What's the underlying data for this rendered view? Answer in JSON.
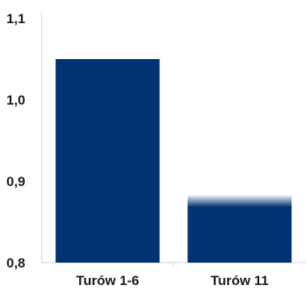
{
  "chart_data": {
    "type": "bar",
    "title": "",
    "xlabel": "",
    "ylabel": "",
    "categories": [
      "Turów 1-6",
      "Turów 11"
    ],
    "values": [
      1.05,
      0.895
    ],
    "ylim": [
      0.8,
      1.1
    ],
    "yticks": [
      0.8,
      0.9,
      1.0,
      1.1
    ],
    "ytick_labels": [
      "0,8",
      "0,9",
      "1,0",
      "1,1"
    ],
    "grid": false,
    "legend": "none",
    "colors": {
      "bar": "#003372",
      "bar_fade": "#ffffff",
      "axis": "#d0d0d0"
    }
  }
}
